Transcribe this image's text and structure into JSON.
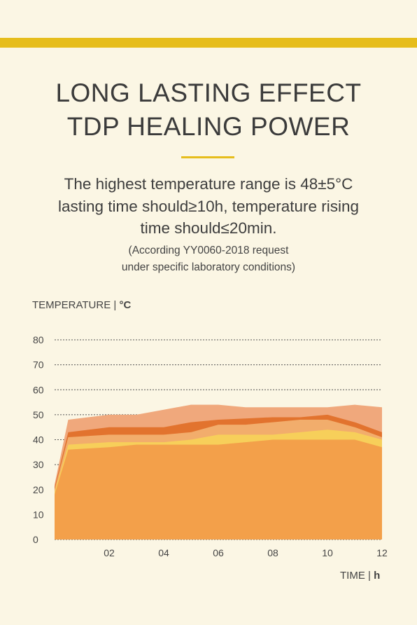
{
  "header": {
    "title_line1": "LONG LASTING EFFECT",
    "title_line2": "TDP HEALING POWER"
  },
  "description": {
    "line1": "The highest temperature range is 48±5°C",
    "line2": "lasting time should≥10h, temperature rising",
    "line3": "time should≤20min.",
    "note_line1": "(According YY0060-2018 request",
    "note_line2": "under specific laboratory conditions)"
  },
  "colors": {
    "background": "#fbf6e4",
    "accent": "#e6bd1c"
  },
  "chart_data": {
    "type": "area",
    "ylabel": "TEMPERATURE | ",
    "ylabel_unit": "°C",
    "xlabel": "TIME | ",
    "xlabel_unit": "h",
    "ylim": [
      0,
      80
    ],
    "xlim": [
      0,
      12
    ],
    "yticks": [
      "0",
      "10",
      "20",
      "30",
      "40",
      "50",
      "60",
      "70",
      "80"
    ],
    "xtick_values": [
      2,
      4,
      6,
      8,
      10,
      12
    ],
    "xticks": [
      "02",
      "04",
      "06",
      "08",
      "10",
      "12"
    ],
    "grid": "horizontal dashed",
    "series": [
      {
        "x": [
          0,
          0.5,
          2,
          3,
          4,
          5,
          6,
          7,
          8,
          9,
          10,
          11,
          12
        ],
        "y": [
          22,
          48,
          50,
          50,
          52,
          54,
          54,
          53,
          53,
          53,
          53,
          54,
          53
        ],
        "color": "#f0a87c"
      },
      {
        "x": [
          0,
          0.5,
          2,
          3,
          4,
          5,
          6,
          7,
          8,
          9,
          10,
          11,
          12
        ],
        "y": [
          21,
          43,
          45,
          45,
          45,
          47,
          48,
          48.5,
          49,
          49,
          50,
          47,
          43
        ],
        "color": "#e2732e"
      },
      {
        "x": [
          0,
          0.5,
          2,
          3,
          4,
          5,
          6,
          7,
          8,
          9,
          10,
          11,
          12
        ],
        "y": [
          20,
          41,
          42,
          42,
          42,
          43,
          46,
          46,
          47,
          48,
          48,
          45,
          41
        ],
        "color": "#f2ad6c"
      },
      {
        "x": [
          0,
          0.5,
          2,
          3,
          4,
          5,
          6,
          7,
          8,
          9,
          10,
          11,
          12
        ],
        "y": [
          19,
          38,
          39,
          39,
          39,
          40,
          42,
          42,
          42,
          43,
          44,
          43,
          40
        ],
        "color": "#f7cf5a"
      },
      {
        "x": [
          0,
          0.5,
          2,
          3,
          4,
          5,
          6,
          7,
          8,
          9,
          10,
          11,
          12
        ],
        "y": [
          18,
          36,
          37,
          38,
          38,
          38,
          38,
          39,
          40,
          40,
          40,
          40,
          37
        ],
        "color": "#f3a04a"
      }
    ]
  }
}
